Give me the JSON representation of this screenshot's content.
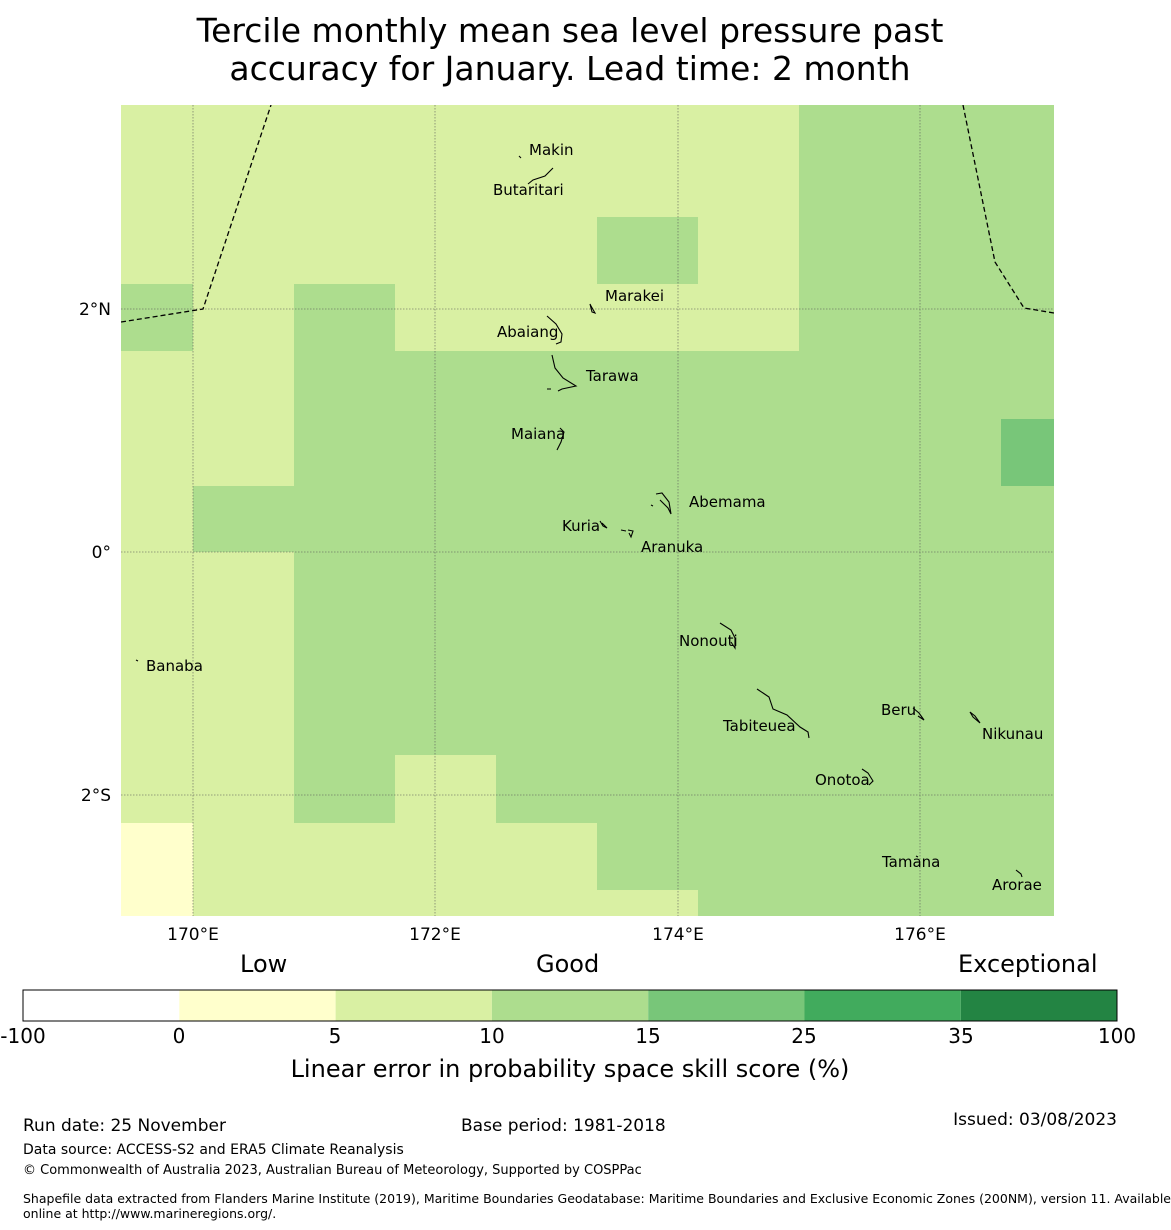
{
  "title": {
    "line1": "Tercile monthly mean sea level pressure past",
    "line2": "accuracy for January. Lead time: 2 month"
  },
  "map": {
    "x_ticks": [
      "170°E",
      "172°E",
      "174°E",
      "176°E"
    ],
    "y_ticks": [
      "2°N",
      "0°",
      "2°S"
    ],
    "islands": [
      "Makin",
      "Butaritari",
      "Marakei",
      "Abaiang",
      "Tarawa",
      "Maiana",
      "Abemama",
      "Kuria",
      "Aranuka",
      "Banaba",
      "Nonouti",
      "Beru",
      "Tabiteuea",
      "Nikunau",
      "Onotoa",
      "Tamana",
      "Arorae"
    ],
    "colors": {
      "c0_5": "#ffffcc",
      "c5_10": "#d9f0a3",
      "c10_15": "#addd8e",
      "c15_25": "#78c679",
      "c25_35": "#41ab5d",
      "c35_100": "#238443"
    }
  },
  "legend": {
    "level_low": "Low",
    "level_good": "Good",
    "level_exceptional": "Exceptional",
    "ticks": [
      "-100",
      "0",
      "5",
      "10",
      "15",
      "25",
      "35",
      "100"
    ],
    "bin_colors": [
      "#ffffff",
      "#ffffcc",
      "#d9f0a3",
      "#addd8e",
      "#78c679",
      "#41ab5d",
      "#238443"
    ],
    "title": "Linear error in probability space skill score (%)"
  },
  "footer": {
    "run_date": "Run date: 25 November",
    "base_period": "Base period: 1981-2018",
    "issued": "Issued: 03/08/2023",
    "data_source": "Data source: ACCESS-S2 and ERA5 Climate Reanalysis",
    "copyright": "© Commonwealth of Australia 2023, Australian Bureau of Meteorology, Supported by COSPPac",
    "shapefile_line1": "Shapefile data extracted from Flanders Marine Institute (2019), Maritime Boundaries Geodatabase: Maritime Boundaries and Exclusive Economic Zones (200NM), version 11. Available",
    "shapefile_line2": "online at http://www.marineregions.org/."
  }
}
